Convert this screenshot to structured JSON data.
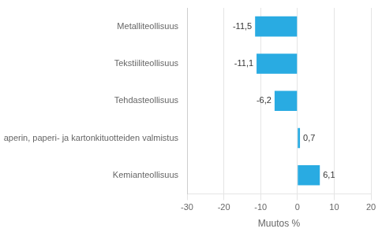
{
  "chart_data": {
    "type": "bar",
    "orientation": "horizontal",
    "categories": [
      "Metalliteollisuus",
      "Tekstiiliteollisuus",
      "Tehdasteollisuus",
      "Paperin, paperi- ja kartonkituotteiden valmistus",
      "Kemianteollisuus"
    ],
    "values": [
      -11.5,
      -11.1,
      -6.2,
      0.7,
      6.1
    ],
    "value_labels": [
      "-11,5",
      "-11,1",
      "-6,2",
      "0,7",
      "6,1"
    ],
    "data_labels": true,
    "color": "#29abe2",
    "xlim": [
      -30,
      20
    ],
    "xticks": [
      -30,
      -20,
      -10,
      0,
      10,
      20
    ],
    "xlabel": "Muutos %",
    "grid": true
  }
}
